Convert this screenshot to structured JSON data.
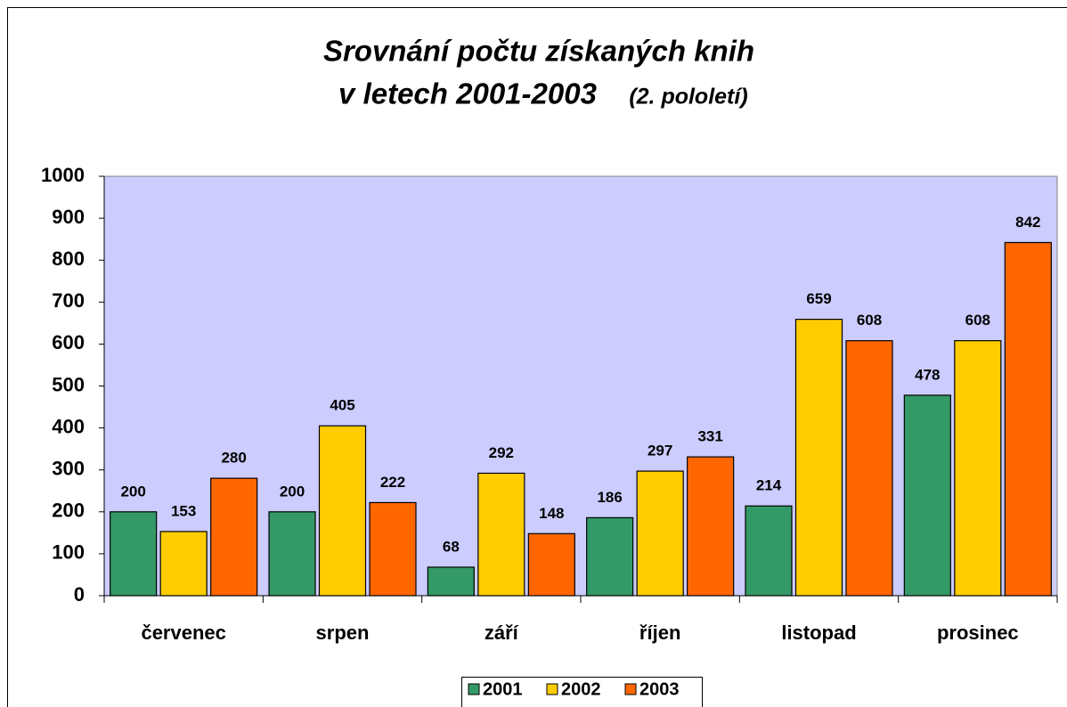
{
  "chart_data": {
    "type": "bar",
    "title": [
      "Srovnání počtu získaných knih",
      "v letech 2001-2003"
    ],
    "subtitle": "(2. pololetí)",
    "categories": [
      "červenec",
      "srpen",
      "září",
      "říjen",
      "listopad",
      "prosinec"
    ],
    "series": [
      {
        "name": "2001",
        "color": "#339966",
        "values": [
          200,
          200,
          68,
          186,
          214,
          478
        ]
      },
      {
        "name": "2002",
        "color": "#ffcc00",
        "values": [
          153,
          405,
          292,
          297,
          659,
          608
        ]
      },
      {
        "name": "2003",
        "color": "#ff6600",
        "values": [
          280,
          222,
          148,
          331,
          608,
          842
        ]
      }
    ],
    "ylim": [
      0,
      1000
    ],
    "yticks": [
      0,
      100,
      200,
      300,
      400,
      500,
      600,
      700,
      800,
      900,
      1000
    ],
    "grid": false,
    "legend": "bottom",
    "plot_background": "#ccccff"
  }
}
